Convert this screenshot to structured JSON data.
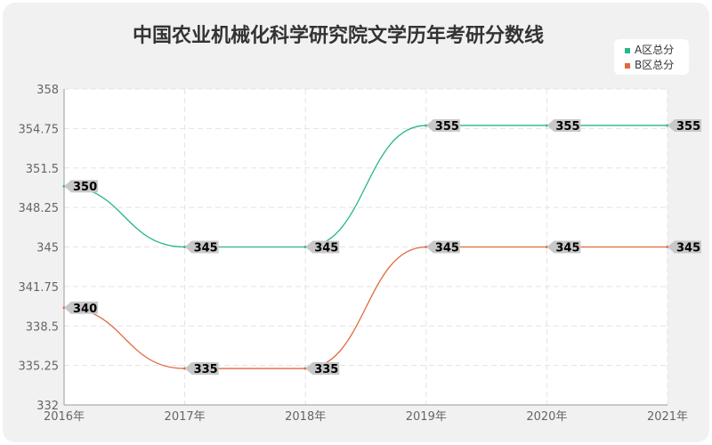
{
  "chart_data": {
    "type": "line",
    "title": "中国农业机械化科学研究院文学历年考研分数线",
    "x": [
      "2016年",
      "2017年",
      "2018年",
      "2019年",
      "2020年",
      "2021年"
    ],
    "y_ticks": [
      "358",
      "354.75",
      "351.5",
      "348.25",
      "345",
      "341.75",
      "338.5",
      "335.25",
      "332"
    ],
    "ylim": [
      332,
      358
    ],
    "grid": true,
    "legend_position": "top-right",
    "series": [
      {
        "name": "A区总分",
        "color": "#2bb58a",
        "values": [
          350,
          345,
          345,
          355,
          355,
          355
        ]
      },
      {
        "name": "B区总分",
        "color": "#e0683d",
        "values": [
          340,
          335,
          335,
          345,
          345,
          345
        ]
      }
    ]
  }
}
